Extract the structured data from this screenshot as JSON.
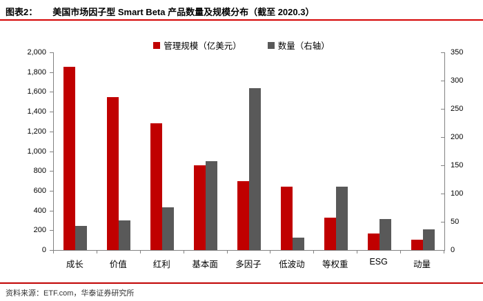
{
  "header": {
    "figure_label": "图表2：",
    "title": "美国市场因子型 Smart Beta 产品数量及规模分布（截至 2020.3）"
  },
  "chart_data": {
    "type": "bar",
    "title": "美国市场因子型 Smart Beta 产品数量及规模分布（截至 2020.3）",
    "categories": [
      "成长",
      "价值",
      "红利",
      "基本面",
      "多因子",
      "低波动",
      "等权重",
      "ESG",
      "动量"
    ],
    "series": [
      {
        "name": "管理规模（亿美元）",
        "axis": "left",
        "color": "#c00000",
        "values": [
          1855,
          1545,
          1285,
          860,
          700,
          640,
          330,
          165,
          105
        ]
      },
      {
        "name": "数量（右轴）",
        "axis": "right",
        "color": "#595959",
        "values": [
          43,
          53,
          76,
          157,
          286,
          22,
          112,
          55,
          36
        ]
      }
    ],
    "left_axis": {
      "min": 0,
      "max": 2000,
      "step": 200,
      "tick_labels": [
        "0",
        "200",
        "400",
        "600",
        "800",
        "1,000",
        "1,200",
        "1,400",
        "1,600",
        "1,800",
        "2,000"
      ]
    },
    "right_axis": {
      "min": 0,
      "max": 350,
      "step": 50,
      "tick_labels": [
        "0",
        "50",
        "100",
        "150",
        "200",
        "250",
        "300",
        "350"
      ]
    },
    "grid": false,
    "legend_position": "top"
  },
  "colors": {
    "divider_red": "#d40000",
    "axis_gray": "#808080"
  },
  "footer": {
    "source": "资料来源：ETF.com，华泰证券研究所"
  }
}
